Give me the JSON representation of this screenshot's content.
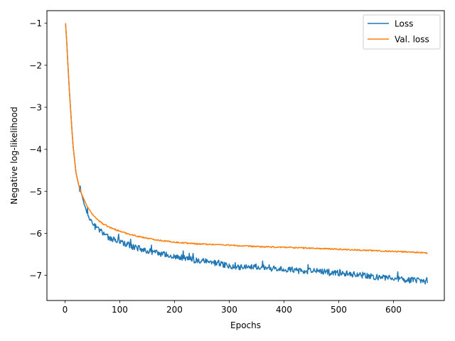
{
  "chart_data": {
    "type": "line",
    "title": "",
    "xlabel": "Epochs",
    "ylabel": "Negative log-likelihood",
    "xlim": [
      -33,
      693
    ],
    "ylim": [
      -7.6,
      -0.7
    ],
    "xticks": [
      0,
      100,
      200,
      300,
      400,
      500,
      600
    ],
    "yticks": [
      -1,
      -2,
      -3,
      -4,
      -5,
      -6,
      -7
    ],
    "xtick_labels": [
      "0",
      "100",
      "200",
      "300",
      "400",
      "500",
      "600"
    ],
    "ytick_labels": [
      "−1",
      "−2",
      "−3",
      "−4",
      "−5",
      "−6",
      "−7"
    ],
    "grid": false,
    "legend_position": "top-right",
    "series": [
      {
        "name": "Loss",
        "color": "#1f77b4",
        "noise": 0.07,
        "points": [
          [
            1,
            -1.0
          ],
          [
            3,
            -1.4
          ],
          [
            5,
            -1.9
          ],
          [
            8,
            -2.6
          ],
          [
            10,
            -3.0
          ],
          [
            13,
            -3.6
          ],
          [
            15,
            -3.95
          ],
          [
            18,
            -4.3
          ],
          [
            20,
            -4.55
          ],
          [
            25,
            -4.85
          ],
          [
            30,
            -5.05
          ],
          [
            35,
            -5.3
          ],
          [
            40,
            -5.5
          ],
          [
            45,
            -5.65
          ],
          [
            50,
            -5.75
          ],
          [
            60,
            -5.9
          ],
          [
            70,
            -6.0
          ],
          [
            80,
            -6.1
          ],
          [
            90,
            -6.15
          ],
          [
            100,
            -6.2
          ],
          [
            120,
            -6.3
          ],
          [
            140,
            -6.38
          ],
          [
            160,
            -6.45
          ],
          [
            180,
            -6.5
          ],
          [
            200,
            -6.55
          ],
          [
            220,
            -6.6
          ],
          [
            240,
            -6.65
          ],
          [
            260,
            -6.68
          ],
          [
            280,
            -6.72
          ],
          [
            300,
            -6.78
          ],
          [
            320,
            -6.8
          ],
          [
            340,
            -6.8
          ],
          [
            360,
            -6.82
          ],
          [
            380,
            -6.85
          ],
          [
            400,
            -6.85
          ],
          [
            420,
            -6.87
          ],
          [
            440,
            -6.9
          ],
          [
            460,
            -6.9
          ],
          [
            480,
            -6.92
          ],
          [
            500,
            -6.95
          ],
          [
            520,
            -6.97
          ],
          [
            540,
            -7.0
          ],
          [
            560,
            -7.03
          ],
          [
            580,
            -7.05
          ],
          [
            600,
            -7.08
          ],
          [
            620,
            -7.1
          ],
          [
            640,
            -7.12
          ],
          [
            662,
            -7.15
          ]
        ]
      },
      {
        "name": "Val. loss",
        "color": "#ff7f0e",
        "noise": 0.015,
        "points": [
          [
            1,
            -1.0
          ],
          [
            3,
            -1.4
          ],
          [
            5,
            -1.9
          ],
          [
            8,
            -2.6
          ],
          [
            10,
            -3.0
          ],
          [
            13,
            -3.6
          ],
          [
            15,
            -3.95
          ],
          [
            18,
            -4.3
          ],
          [
            20,
            -4.55
          ],
          [
            25,
            -4.85
          ],
          [
            30,
            -5.05
          ],
          [
            35,
            -5.2
          ],
          [
            40,
            -5.35
          ],
          [
            45,
            -5.45
          ],
          [
            50,
            -5.55
          ],
          [
            60,
            -5.68
          ],
          [
            70,
            -5.78
          ],
          [
            80,
            -5.85
          ],
          [
            90,
            -5.9
          ],
          [
            100,
            -5.95
          ],
          [
            120,
            -6.03
          ],
          [
            140,
            -6.09
          ],
          [
            160,
            -6.14
          ],
          [
            180,
            -6.18
          ],
          [
            200,
            -6.21
          ],
          [
            220,
            -6.23
          ],
          [
            240,
            -6.25
          ],
          [
            260,
            -6.26
          ],
          [
            280,
            -6.27
          ],
          [
            300,
            -6.28
          ],
          [
            320,
            -6.3
          ],
          [
            340,
            -6.31
          ],
          [
            360,
            -6.32
          ],
          [
            380,
            -6.33
          ],
          [
            400,
            -6.33
          ],
          [
            420,
            -6.34
          ],
          [
            440,
            -6.35
          ],
          [
            460,
            -6.36
          ],
          [
            480,
            -6.37
          ],
          [
            500,
            -6.38
          ],
          [
            520,
            -6.39
          ],
          [
            540,
            -6.4
          ],
          [
            560,
            -6.41
          ],
          [
            580,
            -6.42
          ],
          [
            600,
            -6.43
          ],
          [
            620,
            -6.44
          ],
          [
            640,
            -6.45
          ],
          [
            662,
            -6.47
          ]
        ]
      }
    ]
  }
}
